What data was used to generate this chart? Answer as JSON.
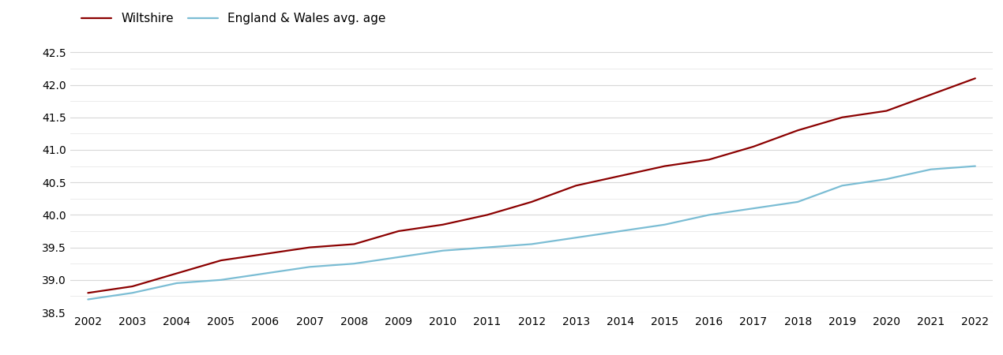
{
  "years": [
    2002,
    2003,
    2004,
    2005,
    2006,
    2007,
    2008,
    2009,
    2010,
    2011,
    2012,
    2013,
    2014,
    2015,
    2016,
    2017,
    2018,
    2019,
    2020,
    2021,
    2022
  ],
  "wiltshire": [
    38.8,
    38.9,
    39.1,
    39.3,
    39.4,
    39.5,
    39.55,
    39.75,
    39.85,
    40.0,
    40.2,
    40.45,
    40.6,
    40.75,
    40.85,
    41.05,
    41.3,
    41.5,
    41.6,
    41.85,
    42.1
  ],
  "england_wales": [
    38.7,
    38.8,
    38.95,
    39.0,
    39.1,
    39.2,
    39.25,
    39.35,
    39.45,
    39.5,
    39.55,
    39.65,
    39.75,
    39.85,
    40.0,
    40.1,
    40.2,
    40.45,
    40.55,
    40.7,
    40.75
  ],
  "wiltshire_color": "#8B0000",
  "england_wales_color": "#7BBDD4",
  "background_color": "#ffffff",
  "ylim": [
    38.5,
    42.65
  ],
  "yticks": [
    38.5,
    39.0,
    39.5,
    40.0,
    40.5,
    41.0,
    41.5,
    42.0,
    42.5
  ],
  "minor_yticks": [
    38.75,
    39.25,
    39.75,
    40.25,
    40.75,
    41.25,
    41.75,
    42.25
  ],
  "grid_color": "#d8d8d8",
  "minor_grid_color": "#e8e8e8",
  "legend_wiltshire": "Wiltshire",
  "legend_ew": "England & Wales avg. age",
  "line_width": 1.6,
  "tick_fontsize": 10,
  "legend_fontsize": 11
}
